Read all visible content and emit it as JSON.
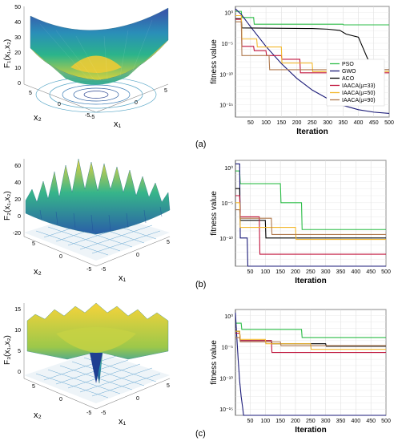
{
  "chart_data": [
    {
      "panel": "(a)",
      "surface": {
        "type": "surface3d",
        "zlabel": "F₁(x₁,x₂)",
        "xlabel": "x₁",
        "ylabel": "x₂",
        "zticks": [
          "0",
          "10",
          "20",
          "30",
          "40",
          "50"
        ],
        "xticks": [
          "-5",
          "0",
          "5"
        ],
        "yticks": [
          "-5",
          "0",
          "5"
        ]
      },
      "convergence": {
        "type": "line",
        "xlabel": "Iteration",
        "ylabel": "fitness value",
        "xticks": [
          "50",
          "100",
          "150",
          "200",
          "250",
          "300",
          "350",
          "400",
          "450",
          "500"
        ],
        "yticks": [
          "10⁰",
          "10⁻⁵",
          "10⁻¹⁰",
          "10⁻¹⁵"
        ],
        "xlim": [
          1,
          500
        ],
        "ylim_exp": [
          -17,
          1
        ],
        "legend": [
          "PSO",
          "GWO",
          "ACO",
          "IAACA(μ=33)",
          "IAACA(μ=50)",
          "IAACA(μ=90)"
        ],
        "series": [
          {
            "name": "PSO",
            "color": "#2dbd48",
            "x": [
              1,
              20,
              22,
              60,
              62,
              350,
              352,
              500
            ],
            "y_log10": [
              0.2,
              0.2,
              -0.8,
              -0.8,
              -1.9,
              -1.9,
              -2.0,
              -2.0
            ]
          },
          {
            "name": "GWO",
            "color": "#1a1a78",
            "x": [
              1,
              20,
              50,
              100,
              150,
              200,
              250,
              300,
              350,
              400,
              450,
              500
            ],
            "y_log10": [
              0.6,
              -0.3,
              -2.3,
              -5.5,
              -8.3,
              -10.7,
              -12.6,
              -14.0,
              -15.1,
              -15.8,
              -16.2,
              -16.4
            ]
          },
          {
            "name": "ACO",
            "color": "#000000",
            "x": [
              1,
              20,
              22,
              250,
              300,
              340,
              360,
              400,
              430,
              460,
              500
            ],
            "y_log10": [
              -1.0,
              -1.0,
              -2.5,
              -2.6,
              -2.7,
              -2.9,
              -3.5,
              -4.0,
              -7.5,
              -9.3,
              -9.3
            ]
          },
          {
            "name": "IAACA(μ=33)",
            "color": "#c0143c",
            "x": [
              1,
              20,
              22,
              60,
              62,
              100,
              102,
              150,
              152,
              210,
              212,
              500
            ],
            "y_log10": [
              -1.1,
              -1.1,
              -5.5,
              -5.5,
              -6.2,
              -6.2,
              -7.0,
              -7.0,
              -7.6,
              -7.6,
              -9.8,
              -9.8
            ]
          },
          {
            "name": "IAACA(μ=50)",
            "color": "#f2b82e",
            "x": [
              1,
              20,
              22,
              70,
              72,
              150,
              152,
              250,
              252,
              500
            ],
            "y_log10": [
              -0.5,
              -0.5,
              -4.3,
              -4.3,
              -5.6,
              -5.6,
              -8.2,
              -8.2,
              -9.6,
              -9.6
            ]
          },
          {
            "name": "IAACA(μ=90)",
            "color": "#b07a4f",
            "x": [
              1,
              20,
              22,
              110,
              112,
              500
            ],
            "y_log10": [
              -1.5,
              -1.5,
              -7.0,
              -7.0,
              -9.3,
              -9.3
            ]
          }
        ]
      }
    },
    {
      "panel": "(b)",
      "surface": {
        "type": "surface3d",
        "zlabel": "F₂(x₁,x₂)",
        "xlabel": "x₁",
        "ylabel": "x₂",
        "zticks": [
          "-20",
          "0",
          "20",
          "40",
          "60"
        ],
        "xticks": [
          "-5",
          "0",
          "5"
        ],
        "yticks": [
          "-5",
          "0",
          "5"
        ]
      },
      "convergence": {
        "type": "line",
        "xlabel": "Iteration",
        "ylabel": "fitness value",
        "xticks": [
          "50",
          "100",
          "150",
          "200",
          "250",
          "300",
          "350",
          "400",
          "450",
          "500"
        ],
        "yticks": [
          "10⁰",
          "10⁻⁵",
          "10⁻¹⁰"
        ],
        "xlim": [
          1,
          500
        ],
        "ylim_exp": [
          -14,
          1
        ],
        "series": [
          {
            "name": "PSO",
            "color": "#2dbd48",
            "x": [
              1,
              15,
              17,
              150,
              152,
              220,
              222,
              500
            ],
            "y_log10": [
              -0.5,
              -0.5,
              -2.3,
              -2.3,
              -5.0,
              -5.0,
              -8.8,
              -8.8
            ]
          },
          {
            "name": "GWO",
            "color": "#1a1a78",
            "x": [
              1,
              15,
              17,
              40,
              42,
              500
            ],
            "y_log10": [
              0.5,
              0.5,
              -10.0,
              -10.0,
              -14.0,
              -14.0
            ]
          },
          {
            "name": "ACO",
            "color": "#000000",
            "x": [
              1,
              15,
              17,
              100,
              102,
              500
            ],
            "y_log10": [
              -3.0,
              -3.0,
              -7.5,
              -7.5,
              -10.0,
              -10.0
            ]
          },
          {
            "name": "IAACA(μ=33)",
            "color": "#c0143c",
            "x": [
              1,
              15,
              17,
              80,
              82,
              500
            ],
            "y_log10": [
              -4.0,
              -4.0,
              -7.0,
              -7.0,
              -12.3,
              -12.3
            ]
          },
          {
            "name": "IAACA(μ=50)",
            "color": "#f2b82e",
            "x": [
              1,
              15,
              17,
              200,
              202,
              500
            ],
            "y_log10": [
              -5.0,
              -5.0,
              -8.5,
              -8.5,
              -10.2,
              -10.2
            ]
          },
          {
            "name": "IAACA(μ=90)",
            "color": "#b07a4f",
            "x": [
              1,
              15,
              17,
              120,
              122,
              500
            ],
            "y_log10": [
              -6.0,
              -6.0,
              -7.2,
              -7.2,
              -9.5,
              -9.5
            ]
          }
        ]
      }
    },
    {
      "panel": "(c)",
      "surface": {
        "type": "surface3d",
        "zlabel": "F₃(x₁,x₂)",
        "xlabel": "x₁",
        "ylabel": "x₂",
        "zticks": [
          "0",
          "5",
          "10",
          "15"
        ],
        "xticks": [
          "-5",
          "0",
          "5"
        ],
        "yticks": [
          "-5",
          "0",
          "5"
        ]
      },
      "convergence": {
        "type": "line",
        "xlabel": "Iteration",
        "ylabel": "fitness value",
        "xticks": [
          "50",
          "100",
          "150",
          "200",
          "250",
          "300",
          "350",
          "400",
          "450",
          "500"
        ],
        "yticks": [
          "10⁰",
          "10⁻⁵",
          "10⁻¹⁰",
          "10⁻¹⁵"
        ],
        "xlim": [
          1,
          500
        ],
        "ylim_exp": [
          -16,
          1
        ],
        "series": [
          {
            "name": "PSO",
            "color": "#2dbd48",
            "x": [
              1,
              20,
              22,
              220,
              222,
              500
            ],
            "y_log10": [
              -1.2,
              -1.2,
              -2.2,
              -2.2,
              -3.5,
              -3.5
            ]
          },
          {
            "name": "GWO",
            "color": "#1a1a78",
            "x": [
              1,
              5,
              10,
              15,
              20,
              25,
              28,
              30,
              500
            ],
            "y_log10": [
              0.5,
              -3.0,
              -7.0,
              -10.5,
              -13.0,
              -14.8,
              -16.0,
              -17.0,
              -17.0
            ]
          },
          {
            "name": "ACO",
            "color": "#000000",
            "x": [
              1,
              15,
              17,
              120,
              122,
              300,
              302,
              500
            ],
            "y_log10": [
              -2.5,
              -2.5,
              -4.0,
              -4.0,
              -4.5,
              -4.5,
              -4.9,
              -4.9
            ]
          },
          {
            "name": "IAACA(μ=33)",
            "color": "#c0143c",
            "x": [
              1,
              15,
              17,
              120,
              122,
              500
            ],
            "y_log10": [
              -2.8,
              -2.8,
              -4.0,
              -4.0,
              -5.9,
              -5.9
            ]
          },
          {
            "name": "IAACA(μ=50)",
            "color": "#f2b82e",
            "x": [
              1,
              15,
              17,
              100,
              102,
              250,
              252,
              500
            ],
            "y_log10": [
              -2.5,
              -2.5,
              -3.8,
              -3.8,
              -4.5,
              -4.5,
              -5.4,
              -5.4
            ]
          },
          {
            "name": "IAACA(μ=90)",
            "color": "#b07a4f",
            "x": [
              1,
              15,
              17,
              150,
              152,
              500
            ],
            "y_log10": [
              -3.5,
              -3.5,
              -4.2,
              -4.2,
              -4.8,
              -4.8
            ]
          }
        ]
      }
    }
  ]
}
